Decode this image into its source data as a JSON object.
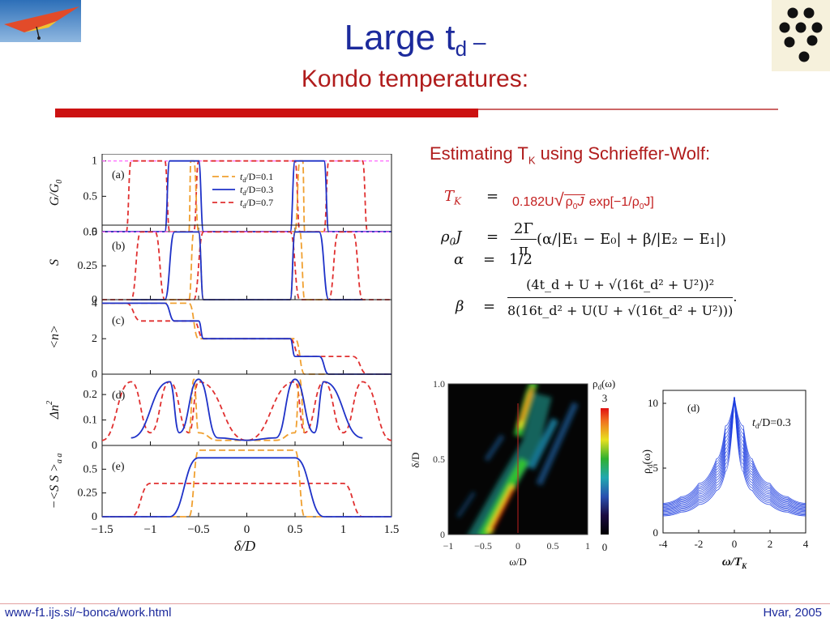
{
  "slide": {
    "title_main": "Large t",
    "title_sub_d": "d",
    "title_dash": " –",
    "title_second": "Kondo temperatures:",
    "heading_prefix": "Estimating T",
    "heading_sub": "K",
    "heading_suffix": " using Schrieffer-Wolf:",
    "footer_url": "www-f1.ijs.si/~bonca/work.html",
    "footer_right": "Hvar, 2005"
  },
  "equations": {
    "tk_lhs": "T",
    "tk_lhs_sub": "K",
    "eq_sign": "=",
    "tk_rhs_a": "0.182U",
    "tk_rhs_b": "ρ",
    "tk_rhs_c": "0",
    "tk_rhs_d": "J",
    "tk_rhs_e": "exp[−1/ρ",
    "tk_rhs_f": "0",
    "tk_rhs_g": "J]",
    "rho_lhs": "ρ",
    "rho_lhs_sub": "0",
    "rho_lhs_j": "J",
    "rho_num": "2Γ",
    "rho_den": "π",
    "rho_rest": "(α/|E₁ − E₀| + β/|E₂ − E₁|)",
    "alpha_lhs": "α",
    "alpha_rhs": "1/2",
    "beta_lhs": "β",
    "beta_num": "(4t_d + U + √(16t_d² + U²))²",
    "beta_den": "8(16t_d² + U(U + √(16t_d² + U²)))",
    "period": "."
  },
  "left_figure": {
    "xlabel": "δ/D",
    "xticks": [
      "−1.5",
      "−1",
      "−0.5",
      "0",
      "0.5",
      "1",
      "1.5"
    ],
    "legend": [
      "t_d/D=0.1",
      "t_d/D=0.3",
      "t_d/D=0.7"
    ],
    "legend_parts": {
      "t": "t",
      "d": "d",
      "rest": [
        "/D=0.1",
        "/D=0.3",
        "/D=0.7"
      ]
    },
    "colors": {
      "0.1": "#f0a030",
      "0.3": "#1f32c8",
      "0.7": "#e03030",
      "ref": "#ff66ff"
    },
    "panels": [
      {
        "tag": "(a)",
        "ylabel": "G/G",
        "ylabel_sub": "0",
        "yticks": [
          "0",
          "0.5",
          "1"
        ]
      },
      {
        "tag": "(b)",
        "ylabel": "S",
        "yticks": [
          "0",
          "0.25",
          "0.5"
        ]
      },
      {
        "tag": "(c)",
        "ylabel": "<n>",
        "yticks": [
          "0",
          "2",
          "4"
        ]
      },
      {
        "tag": "(d)",
        "ylabel": "Δn",
        "ylabel_sup": "2",
        "yticks": [
          "0",
          "0.1",
          "0.2"
        ]
      },
      {
        "tag": "(e)",
        "ylabel": "−<S S >",
        "ylabel_sub": "a a",
        "yticks": [
          "0",
          "0.25",
          "0.5"
        ]
      }
    ]
  },
  "chart_data": [
    {
      "type": "line",
      "panel": "(a)",
      "xlabel": "δ/D",
      "ylabel": "G/G0",
      "xlim": [
        -1.5,
        1.5
      ],
      "ylim": [
        0,
        1.1
      ],
      "series": [
        {
          "name": "t_d/D=0.1",
          "x": [
            -1.5,
            -0.6,
            -0.58,
            -0.55,
            -0.5,
            0,
            0.5,
            0.55,
            0.58,
            0.6,
            1.5
          ],
          "y": [
            0,
            0,
            1,
            1,
            0,
            0,
            0,
            1,
            1,
            0,
            0
          ]
        },
        {
          "name": "t_d/D=0.3",
          "x": [
            -1.5,
            -0.85,
            -0.8,
            -0.5,
            -0.45,
            0,
            0.45,
            0.5,
            0.8,
            0.85,
            1.5
          ],
          "y": [
            0,
            0,
            1,
            1,
            0,
            0,
            0,
            1,
            1,
            0,
            0
          ]
        },
        {
          "name": "t_d/D=0.7",
          "x": [
            -1.5,
            -1.25,
            -1.2,
            -0.85,
            -0.8,
            -0.55,
            -0.5,
            0.5,
            0.55,
            0.8,
            0.85,
            1.2,
            1.25,
            1.5
          ],
          "y": [
            0,
            0,
            1,
            1,
            0,
            0,
            1,
            1,
            0,
            0,
            1,
            1,
            0,
            0
          ]
        }
      ]
    },
    {
      "type": "line",
      "panel": "(b)",
      "ylabel": "S",
      "xlim": [
        -1.5,
        1.5
      ],
      "ylim": [
        0,
        0.55
      ],
      "series": [
        {
          "name": "t_d/D=0.1",
          "x": [
            -1.2,
            -0.6,
            -0.55,
            -0.5,
            -0.45,
            0,
            0.45,
            0.5,
            0.55,
            0.6,
            1.2
          ],
          "y": [
            0,
            0,
            0.5,
            0.5,
            0,
            0,
            0,
            0.5,
            0.5,
            0,
            0
          ]
        },
        {
          "name": "t_d/D=0.3",
          "x": [
            -1.2,
            -0.85,
            -0.75,
            -0.5,
            -0.45,
            0,
            0.45,
            0.5,
            0.75,
            0.85,
            1.2
          ],
          "y": [
            0,
            0,
            0.5,
            0.5,
            0,
            0,
            0,
            0.5,
            0.5,
            0,
            0
          ]
        },
        {
          "name": "t_d/D=0.7",
          "x": [
            -1.5,
            -1.2,
            -1.1,
            -0.95,
            -0.85,
            -0.55,
            -0.45,
            0.45,
            0.55,
            0.85,
            0.95,
            1.1,
            1.2,
            1.5
          ],
          "y": [
            0,
            0,
            0.5,
            0.5,
            0,
            0,
            0.5,
            0.5,
            0,
            0,
            0.5,
            0.5,
            0,
            0
          ]
        }
      ]
    },
    {
      "type": "line",
      "panel": "(c)",
      "ylabel": "<n>",
      "xlim": [
        -1.5,
        1.5
      ],
      "ylim": [
        0,
        4.2
      ],
      "series": [
        {
          "name": "t_d/D=0.1",
          "x": [
            -1.5,
            -0.6,
            -0.5,
            0,
            0.5,
            0.6,
            1.5
          ],
          "y": [
            4,
            4,
            2,
            2,
            2,
            0,
            0
          ]
        },
        {
          "name": "t_d/D=0.3",
          "x": [
            -1.5,
            -0.85,
            -0.75,
            -0.5,
            -0.45,
            0.45,
            0.5,
            0.75,
            0.85,
            1.5
          ],
          "y": [
            4,
            4,
            3,
            3,
            2,
            2,
            1,
            1,
            0,
            0
          ]
        },
        {
          "name": "t_d/D=0.7",
          "x": [
            -1.5,
            -1.25,
            -1.1,
            -0.55,
            -0.45,
            0.45,
            0.55,
            1.1,
            1.25,
            1.5
          ],
          "y": [
            4,
            4,
            3,
            3,
            2,
            2,
            1,
            1,
            0,
            0
          ]
        }
      ]
    },
    {
      "type": "line",
      "panel": "(d)",
      "ylabel": "Δn²",
      "xlim": [
        -1.5,
        1.5
      ],
      "ylim": [
        0,
        0.28
      ],
      "series": [
        {
          "name": "t_d/D=0.1",
          "x": [
            -0.6,
            -0.55,
            -0.5,
            -0.3,
            0,
            0.3,
            0.5,
            0.55,
            0.6
          ],
          "y": [
            0.05,
            0.26,
            0.05,
            0.02,
            0.02,
            0.02,
            0.05,
            0.26,
            0.05
          ]
        },
        {
          "name": "t_d/D=0.3",
          "x": [
            -1.2,
            -0.8,
            -0.7,
            -0.5,
            -0.3,
            0,
            0.3,
            0.5,
            0.7,
            0.8,
            1.2
          ],
          "y": [
            0.03,
            0.25,
            0.05,
            0.26,
            0.03,
            0.02,
            0.03,
            0.26,
            0.05,
            0.25,
            0.03
          ]
        },
        {
          "name": "t_d/D=0.7",
          "x": [
            -1.5,
            -1.2,
            -1.0,
            -0.8,
            -0.6,
            -0.5,
            0,
            0.5,
            0.6,
            0.8,
            1.0,
            1.2,
            1.5
          ],
          "y": [
            0.02,
            0.25,
            0.05,
            0.25,
            0.05,
            0.25,
            0.02,
            0.25,
            0.05,
            0.25,
            0.05,
            0.25,
            0.02
          ]
        }
      ]
    },
    {
      "type": "line",
      "panel": "(e)",
      "ylabel": "−<S_a S_a>",
      "xlim": [
        -1.5,
        1.5
      ],
      "ylim": [
        0,
        0.75
      ],
      "series": [
        {
          "name": "t_d/D=0.1",
          "x": [
            -1.5,
            -0.6,
            -0.5,
            0.5,
            0.6,
            1.5
          ],
          "y": [
            0,
            0,
            0.7,
            0.7,
            0,
            0
          ]
        },
        {
          "name": "t_d/D=0.3",
          "x": [
            -1.5,
            -0.8,
            -0.5,
            0.5,
            0.8,
            1.5
          ],
          "y": [
            0,
            0,
            0.62,
            0.62,
            0,
            0
          ]
        },
        {
          "name": "t_d/D=0.7",
          "x": [
            -1.5,
            -1.2,
            -1.0,
            1.0,
            1.2,
            1.5
          ],
          "y": [
            0,
            0,
            0.35,
            0.35,
            0,
            0
          ]
        }
      ]
    },
    {
      "type": "heatmap",
      "xlabel": "ω/D",
      "ylabel": "δ/D",
      "xlim": [
        -1,
        1
      ],
      "ylim": [
        0,
        1
      ],
      "xticks": [
        "−1",
        "−0.5",
        "0",
        "0.5",
        "1"
      ],
      "yticks": [
        "0",
        "0.5",
        "1.0"
      ],
      "colorbar_label": "ρ",
      "colorbar_sub": "d",
      "colorbar_arg": "(ω)",
      "colorbar_range": [
        "0",
        "3"
      ]
    },
    {
      "type": "line",
      "panel": "(d)",
      "xlabel": "ω/T",
      "xlabel_sub": "K",
      "ylabel": "ρ",
      "ylabel_sub": "d",
      "ylabel_arg": "(ω)",
      "annotation": "t",
      "annotation_sub": "d",
      "annotation_rest": "/D=0.3",
      "xlim": [
        -4,
        4
      ],
      "ylim": [
        0,
        11
      ],
      "xticks": [
        "-4",
        "-2",
        "0",
        "2",
        "4"
      ],
      "yticks": [
        "0",
        "5",
        "10"
      ],
      "series": [
        {
          "name": "t_d/D=0.3",
          "x": [
            -4,
            -3,
            -2,
            -1,
            -0.5,
            0,
            0.5,
            1,
            2,
            3,
            4
          ],
          "y": [
            1.8,
            2.2,
            3,
            4.5,
            6.5,
            10.5,
            6.5,
            4.5,
            3,
            2.2,
            1.8
          ]
        }
      ]
    }
  ]
}
